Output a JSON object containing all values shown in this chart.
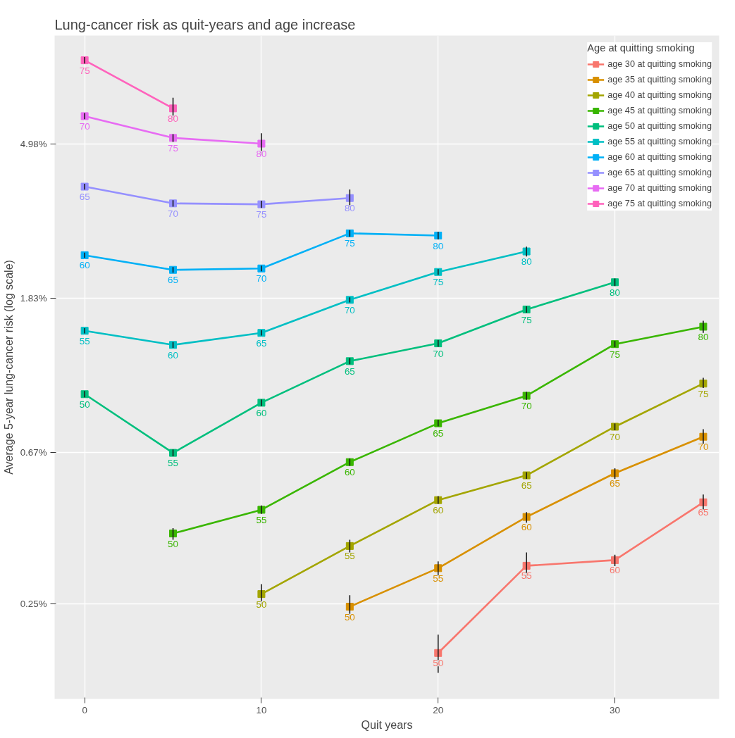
{
  "chart_data": {
    "type": "line",
    "title": "Lung-cancer risk as quit-years and age increase",
    "xlabel": "Quit years",
    "ylabel": "Average 5-year lung-cancer risk (log scale)",
    "legend_title": "Age at quitting smoking",
    "log": "y",
    "grid": true,
    "legend": "top right",
    "marker": "square",
    "line_style": "solid",
    "xlim": [
      -1.7,
      35.9
    ],
    "ylim": [
      0.135,
      10.1
    ],
    "xticks": [
      0,
      10,
      20,
      30
    ],
    "yticks": [
      {
        "value": 0.25,
        "label": "0.25%"
      },
      {
        "value": 0.67,
        "label": "0.67%"
      },
      {
        "value": 1.83,
        "label": "1.83%"
      },
      {
        "value": 4.98,
        "label": "4.98%"
      }
    ],
    "series": [
      {
        "name": "age 30 at quitting smoking",
        "color": "#f8766d",
        "x": [
          20,
          25,
          30,
          35
        ],
        "values": [
          0.182,
          0.321,
          0.333,
          0.485
        ],
        "errors": [
          [
            0.16,
            0.205
          ],
          [
            0.295,
            0.35
          ],
          [
            0.32,
            0.345
          ],
          [
            0.46,
            0.51
          ]
        ]
      },
      {
        "name": "age 35 at quitting smoking",
        "color": "#d89000",
        "x": [
          15,
          20,
          25,
          30,
          35
        ],
        "values": [
          0.246,
          0.316,
          0.441,
          0.586,
          0.743
        ],
        "errors": [
          [
            0.23,
            0.265
          ],
          [
            0.3,
            0.33
          ],
          [
            0.425,
            0.455
          ],
          [
            0.565,
            0.605
          ],
          [
            0.71,
            0.78
          ]
        ]
      },
      {
        "name": "age 40 at quitting smoking",
        "color": "#a3a500",
        "x": [
          10,
          15,
          20,
          25,
          30,
          35
        ],
        "values": [
          0.267,
          0.365,
          0.492,
          0.578,
          0.793,
          1.05
        ],
        "errors": [
          [
            0.25,
            0.285
          ],
          [
            0.35,
            0.38
          ],
          [
            0.48,
            0.505
          ],
          [
            0.565,
            0.59
          ],
          [
            0.775,
            0.81
          ],
          [
            1.02,
            1.09
          ]
        ]
      },
      {
        "name": "age 45 at quitting smoking",
        "color": "#39b600",
        "x": [
          5,
          10,
          15,
          20,
          25,
          30,
          35
        ],
        "values": [
          0.396,
          0.462,
          0.63,
          0.811,
          0.97,
          1.357,
          1.52
        ],
        "errors": [
          [
            0.38,
            0.41
          ],
          [
            0.45,
            0.475
          ],
          [
            0.615,
            0.645
          ],
          [
            0.795,
            0.83
          ],
          [
            0.945,
            0.995
          ],
          [
            1.33,
            1.385
          ],
          [
            1.46,
            1.58
          ]
        ]
      },
      {
        "name": "age 50 at quitting smoking",
        "color": "#00bf7d",
        "x": [
          0,
          5,
          10,
          15,
          20,
          25,
          30
        ],
        "values": [
          0.98,
          0.669,
          0.927,
          1.215,
          1.364,
          1.7,
          2.03
        ],
        "errors": [
          0.02,
          0.015,
          0.02,
          0.025,
          0.03,
          0.035,
          0.05
        ]
      },
      {
        "name": "age 55 at quitting smoking",
        "color": "#00bfc4",
        "x": [
          0,
          5,
          10,
          15,
          20,
          25
        ],
        "values": [
          1.48,
          1.35,
          1.46,
          1.81,
          2.17,
          2.48
        ],
        "errors": [
          0.025,
          0.025,
          0.025,
          0.03,
          0.04,
          0.08
        ]
      },
      {
        "name": "age 60 at quitting smoking",
        "color": "#00b0f6",
        "x": [
          0,
          5,
          10,
          15,
          20
        ],
        "values": [
          2.42,
          2.2,
          2.22,
          2.79,
          2.75
        ],
        "errors": [
          0.04,
          0.04,
          0.04,
          0.06,
          0.07
        ]
      },
      {
        "name": "age 65 at quitting smoking",
        "color": "#9590ff",
        "x": [
          0,
          5,
          10,
          15
        ],
        "values": [
          3.78,
          3.39,
          3.37,
          3.51
        ],
        "errors": [
          0.07,
          0.07,
          0.08,
          0.2
        ]
      },
      {
        "name": "age 70 at quitting smoking",
        "color": "#e76bf3",
        "x": [
          0,
          5,
          10
        ],
        "values": [
          5.98,
          5.19,
          5.0
        ],
        "errors": [
          0.12,
          0.13,
          0.35
        ]
      },
      {
        "name": "age 75 at quitting smoking",
        "color": "#ff62bc",
        "x": [
          0,
          5
        ],
        "values": [
          8.6,
          6.29
        ],
        "errors": [
          0.18,
          0.45
        ]
      }
    ],
    "annotations": [
      {
        "text": "50",
        "x": 20,
        "y": 0.182
      },
      {
        "text": "55",
        "x": 25,
        "y": 0.321
      },
      {
        "text": "60",
        "x": 30,
        "y": 0.333
      },
      {
        "text": "65",
        "x": 35,
        "y": 0.485
      },
      {
        "text": "50",
        "x": 15,
        "y": 0.246
      },
      {
        "text": "55",
        "x": 20,
        "y": 0.316
      },
      {
        "text": "60",
        "x": 25,
        "y": 0.441
      },
      {
        "text": "65",
        "x": 30,
        "y": 0.586
      },
      {
        "text": "70",
        "x": 35,
        "y": 0.743
      },
      {
        "text": "50",
        "x": 10,
        "y": 0.267
      },
      {
        "text": "55",
        "x": 15,
        "y": 0.365
      },
      {
        "text": "60",
        "x": 20,
        "y": 0.492
      },
      {
        "text": "65",
        "x": 25,
        "y": 0.578
      },
      {
        "text": "70",
        "x": 30,
        "y": 0.793
      },
      {
        "text": "75",
        "x": 35,
        "y": 1.05
      },
      {
        "text": "50",
        "x": 5,
        "y": 0.396
      },
      {
        "text": "55",
        "x": 10,
        "y": 0.462
      },
      {
        "text": "60",
        "x": 15,
        "y": 0.63
      },
      {
        "text": "65",
        "x": 20,
        "y": 0.811
      },
      {
        "text": "70",
        "x": 25,
        "y": 0.97
      },
      {
        "text": "75",
        "x": 30,
        "y": 1.357
      },
      {
        "text": "80",
        "x": 35,
        "y": 1.52
      },
      {
        "text": "50",
        "x": 0,
        "y": 0.98
      },
      {
        "text": "55",
        "x": 5,
        "y": 0.669
      },
      {
        "text": "60",
        "x": 10,
        "y": 0.927
      },
      {
        "text": "65",
        "x": 15,
        "y": 1.215
      },
      {
        "text": "70",
        "x": 20,
        "y": 1.364
      },
      {
        "text": "75",
        "x": 25,
        "y": 1.7
      },
      {
        "text": "80",
        "x": 30,
        "y": 2.03
      },
      {
        "text": "55",
        "x": 0,
        "y": 1.48
      },
      {
        "text": "60",
        "x": 5,
        "y": 1.35
      },
      {
        "text": "65",
        "x": 10,
        "y": 1.46
      },
      {
        "text": "70",
        "x": 15,
        "y": 1.81
      },
      {
        "text": "75",
        "x": 20,
        "y": 2.17
      },
      {
        "text": "80",
        "x": 25,
        "y": 2.48
      },
      {
        "text": "60",
        "x": 0,
        "y": 2.42
      },
      {
        "text": "65",
        "x": 5,
        "y": 2.2
      },
      {
        "text": "70",
        "x": 10,
        "y": 2.22
      },
      {
        "text": "75",
        "x": 15,
        "y": 2.79
      },
      {
        "text": "80",
        "x": 20,
        "y": 2.75
      },
      {
        "text": "65",
        "x": 0,
        "y": 3.78
      },
      {
        "text": "70",
        "x": 5,
        "y": 3.39
      },
      {
        "text": "75",
        "x": 10,
        "y": 3.37
      },
      {
        "text": "80",
        "x": 15,
        "y": 3.51
      },
      {
        "text": "70",
        "x": 0,
        "y": 5.98
      },
      {
        "text": "75",
        "x": 5,
        "y": 5.19
      },
      {
        "text": "80",
        "x": 10,
        "y": 5.0
      },
      {
        "text": "75",
        "x": 0,
        "y": 8.6
      },
      {
        "text": "80",
        "x": 5,
        "y": 6.29
      }
    ]
  }
}
